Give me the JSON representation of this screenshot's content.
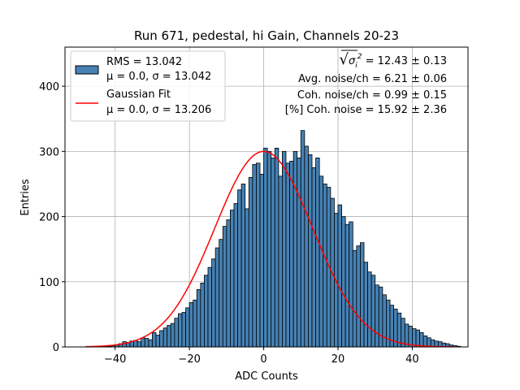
{
  "chart_data": {
    "type": "bar",
    "title": "Run 671, pedestal, hi Gain, Channels 20-23",
    "xlabel": "ADC Counts",
    "ylabel": "Entries",
    "xlim": [
      -53.5,
      55
    ],
    "ylim": [
      0,
      460
    ],
    "grid": true,
    "xticks": [
      -40,
      -20,
      0,
      20,
      40
    ],
    "xtick_labels": [
      "−40",
      "−20",
      "0",
      "20",
      "40"
    ],
    "yticks": [
      0,
      100,
      200,
      300,
      400
    ],
    "ytick_labels": [
      "0",
      "100",
      "200",
      "300",
      "400"
    ],
    "colors": {
      "bar": "#4682b4",
      "bar_edge": "#000000",
      "fit": "#ff0000",
      "grid": "#b0b0b0"
    },
    "histogram": {
      "name": "RMS = 13.042",
      "label_line2": "μ = 0.0, σ = 13.042",
      "bin_start": -48,
      "bin_width": 1,
      "counts": [
        0,
        0,
        0,
        0,
        0,
        1,
        1,
        2,
        3,
        5,
        8,
        7,
        9,
        10,
        8,
        14,
        13,
        11,
        22,
        18,
        25,
        29,
        33,
        36,
        44,
        51,
        53,
        60,
        68,
        72,
        88,
        98,
        110,
        122,
        135,
        152,
        165,
        185,
        195,
        210,
        220,
        241,
        250,
        212,
        260,
        280,
        282,
        265,
        305,
        300,
        290,
        305,
        262,
        300,
        282,
        285,
        300,
        290,
        332,
        308,
        295,
        275,
        290,
        262,
        250,
        245,
        228,
        205,
        218,
        200,
        188,
        192,
        148,
        155,
        160,
        130,
        115,
        110,
        95,
        92,
        80,
        72,
        64,
        58,
        52,
        44,
        35,
        32,
        28,
        26,
        22,
        17,
        14,
        11,
        9,
        8,
        6,
        5,
        3,
        2,
        1
      ]
    },
    "fit": {
      "name": "Gaussian Fit",
      "label_line2": "μ = 0.0, σ = 13.206",
      "mu": 0.0,
      "sigma": 13.206,
      "amplitude": 300,
      "x_range": [
        -48,
        51
      ]
    },
    "annotations": [
      {
        "prefix": "√",
        "sigma_sym": "σ",
        "sub": "i",
        "sup": "2",
        "value": " = 12.43 ± 0.13"
      },
      {
        "text": "Avg. noise/ch = 6.21 ± 0.06"
      },
      {
        "text": "Coh. noise/ch = 0.99 ± 0.15"
      },
      {
        "text": "[%] Coh. noise = 15.92 ± 2.36"
      }
    ],
    "legend_position": "top-left"
  }
}
